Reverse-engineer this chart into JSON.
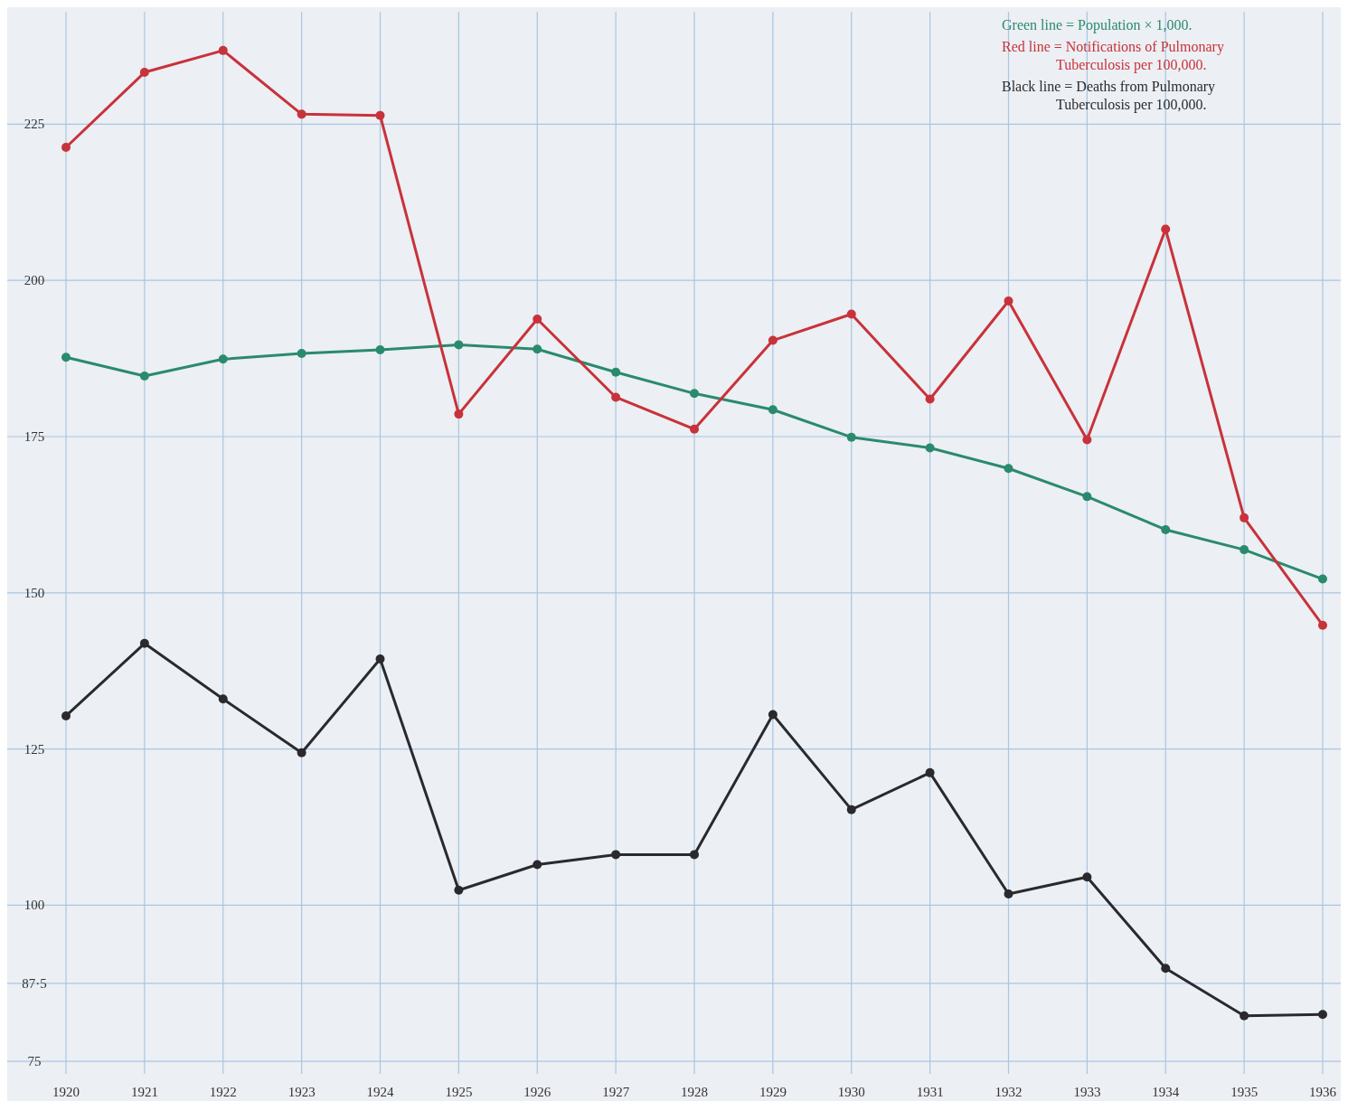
{
  "chart_data": {
    "type": "line",
    "categories": [
      "1920",
      "1921",
      "1922",
      "1923",
      "1924",
      "1925",
      "1926",
      "1927",
      "1928",
      "1929",
      "1930",
      "1931",
      "1932",
      "1933",
      "1934",
      "1935",
      "1936"
    ],
    "series": [
      {
        "name": "Green line = Population × 1,000.",
        "color": "#2a8a6e",
        "values": [
          187.7,
          184.7,
          187.4,
          188.3,
          188.9,
          189.7,
          189.0,
          185.3,
          181.9,
          179.3,
          174.9,
          173.2,
          169.9,
          165.4,
          160.1,
          156.9,
          152.2
        ]
      },
      {
        "name": "Red line = Notifications of Pulmonary Tuberculosis per 100,000.",
        "color": "#c8323a",
        "values": [
          221.3,
          233.3,
          236.8,
          226.6,
          226.4,
          178.6,
          193.8,
          181.3,
          176.2,
          190.4,
          194.6,
          181.0,
          196.7,
          174.5,
          208.2,
          162.0,
          144.8
        ]
      },
      {
        "name": "Black line = Deaths from Pulmonary Tuberculosis per 100,000.",
        "color": "#2a2a2e",
        "values": [
          130.3,
          141.9,
          133.0,
          124.4,
          139.4,
          102.4,
          106.5,
          108.1,
          108.1,
          130.5,
          115.3,
          121.2,
          101.8,
          104.5,
          89.9,
          82.3,
          82.5
        ]
      }
    ],
    "ylim": [
      73,
      243
    ],
    "yticks": [
      75,
      {
        "value": 87.5,
        "label": "87·5"
      },
      100,
      125,
      150,
      175,
      200,
      225
    ],
    "grid": true,
    "legend": "top right",
    "marker": "circle",
    "line_style": "solid"
  }
}
